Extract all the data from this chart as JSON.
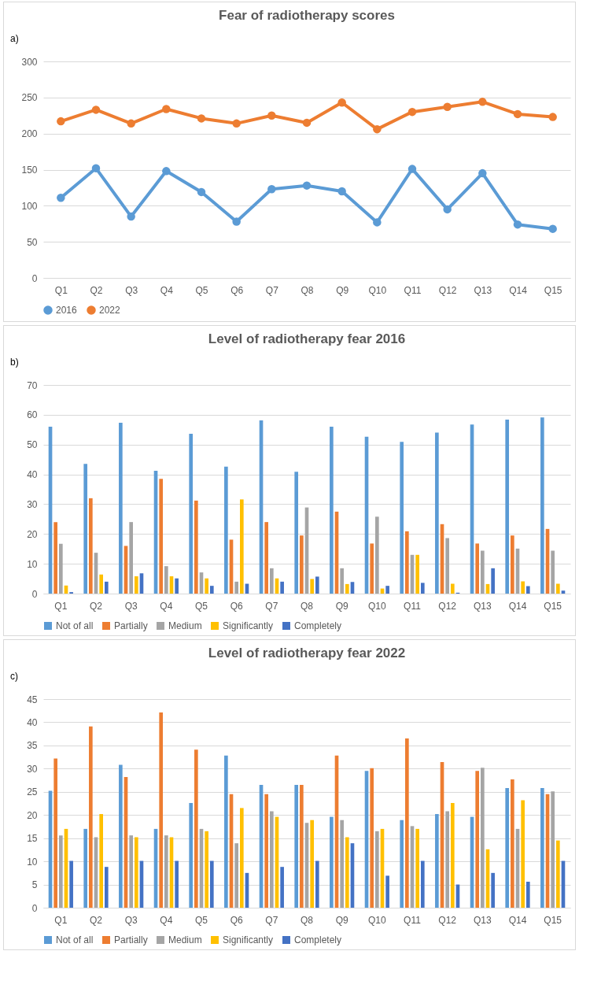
{
  "chart_data": [
    {
      "type": "line",
      "title": "Fear of radiotherapy scores",
      "annotations": [
        "a)"
      ],
      "categories": [
        "Q1",
        "Q2",
        "Q3",
        "Q4",
        "Q5",
        "Q6",
        "Q7",
        "Q8",
        "Q9",
        "Q10",
        "Q11",
        "Q12",
        "Q13",
        "Q14",
        "Q15"
      ],
      "series": [
        {
          "name": "2016",
          "color": "#5b9bd5",
          "values": [
            111,
            152,
            85,
            148,
            119,
            78,
            123,
            128,
            120,
            77,
            151,
            95,
            145,
            74,
            68
          ]
        },
        {
          "name": "2022",
          "color": "#ed7d31",
          "values": [
            217,
            233,
            214,
            234,
            221,
            214,
            225,
            215,
            243,
            206,
            230,
            237,
            244,
            227,
            223
          ]
        }
      ],
      "ylim": [
        0,
        300
      ],
      "yticks": [
        0,
        50,
        100,
        150,
        200,
        250,
        300
      ],
      "grid": "y",
      "legend": "bottom",
      "marker": "circle",
      "line_style": "solid"
    },
    {
      "type": "bar",
      "title": "Level of radiotherapy fear 2016",
      "annotations": [
        "b)"
      ],
      "categories": [
        "Q1",
        "Q2",
        "Q3",
        "Q4",
        "Q5",
        "Q6",
        "Q7",
        "Q8",
        "Q9",
        "Q10",
        "Q11",
        "Q12",
        "Q13",
        "Q14",
        "Q15"
      ],
      "series": [
        {
          "name": "Not of all",
          "color": "#5b9bd5",
          "values": [
            56,
            43.5,
            57.3,
            41.2,
            53.6,
            42.6,
            58.1,
            40.9,
            56,
            52.6,
            50.9,
            54,
            56.7,
            58.4,
            59.1
          ]
        },
        {
          "name": "Partially",
          "color": "#ed7d31",
          "values": [
            24,
            32,
            16,
            38.5,
            31.2,
            18.1,
            24,
            19.5,
            27.5,
            16.8,
            20.9,
            23.3,
            16.8,
            19.5,
            21.7
          ]
        },
        {
          "name": "Medium",
          "color": "#a5a5a5",
          "values": [
            16.7,
            13.7,
            24,
            9.2,
            7.1,
            4,
            8.5,
            28.9,
            8.5,
            25.8,
            13,
            18.6,
            14.4,
            15.1,
            14.4
          ]
        },
        {
          "name": "Significantly",
          "color": "#ffc000",
          "values": [
            2.7,
            6.4,
            5.8,
            5.8,
            5.1,
            31.6,
            5.1,
            4.9,
            3.2,
            1.7,
            13,
            3.3,
            3.2,
            4.1,
            3.3
          ]
        },
        {
          "name": "Completely",
          "color": "#4472c4",
          "values": [
            0.5,
            4,
            6.8,
            5.1,
            2.6,
            3.3,
            4,
            5.7,
            3.9,
            2.6,
            3.6,
            0.3,
            8.5,
            2.5,
            1
          ]
        }
      ],
      "ylim": [
        0,
        70
      ],
      "yticks": [
        0,
        10,
        20,
        30,
        40,
        50,
        60,
        70
      ],
      "grid": "y",
      "legend": "bottom"
    },
    {
      "type": "bar",
      "title": "Level of radiotherapy fear 2022",
      "annotations": [
        "c)"
      ],
      "categories": [
        "Q1",
        "Q2",
        "Q3",
        "Q4",
        "Q5",
        "Q6",
        "Q7",
        "Q8",
        "Q9",
        "Q10",
        "Q11",
        "Q12",
        "Q13",
        "Q14",
        "Q15"
      ],
      "series": [
        {
          "name": "Not of all",
          "color": "#5b9bd5",
          "values": [
            25.2,
            17,
            30.8,
            17,
            22.6,
            32.8,
            26.5,
            26.5,
            19.6,
            29.5,
            18.9,
            20.2,
            19.6,
            25.8,
            25.8
          ]
        },
        {
          "name": "Partially",
          "color": "#ed7d31",
          "values": [
            32.2,
            39.1,
            28.2,
            42.1,
            34.1,
            24.5,
            24.5,
            26.5,
            32.8,
            30.1,
            36.5,
            31.4,
            29.5,
            27.7,
            24.5
          ]
        },
        {
          "name": "Medium",
          "color": "#a5a5a5",
          "values": [
            15.6,
            15.2,
            15.6,
            15.6,
            17,
            13.9,
            20.8,
            18.3,
            18.9,
            16.5,
            17.6,
            20.8,
            30.2,
            17,
            25.1
          ]
        },
        {
          "name": "Significantly",
          "color": "#ffc000",
          "values": [
            17,
            20.2,
            15.2,
            15.2,
            16.5,
            21.5,
            19.6,
            18.9,
            15.2,
            17,
            17,
            22.6,
            12.6,
            23.2,
            14.5
          ]
        },
        {
          "name": "Completely",
          "color": "#4472c4",
          "values": [
            10.1,
            8.8,
            10.1,
            10.1,
            10.1,
            7.5,
            8.8,
            10.1,
            13.9,
            6.9,
            10.1,
            5,
            7.5,
            5.6,
            10.1
          ]
        }
      ],
      "ylim": [
        0,
        45
      ],
      "yticks": [
        0,
        5,
        10,
        15,
        20,
        25,
        30,
        35,
        40,
        45
      ],
      "grid": "y",
      "legend": "bottom"
    }
  ]
}
